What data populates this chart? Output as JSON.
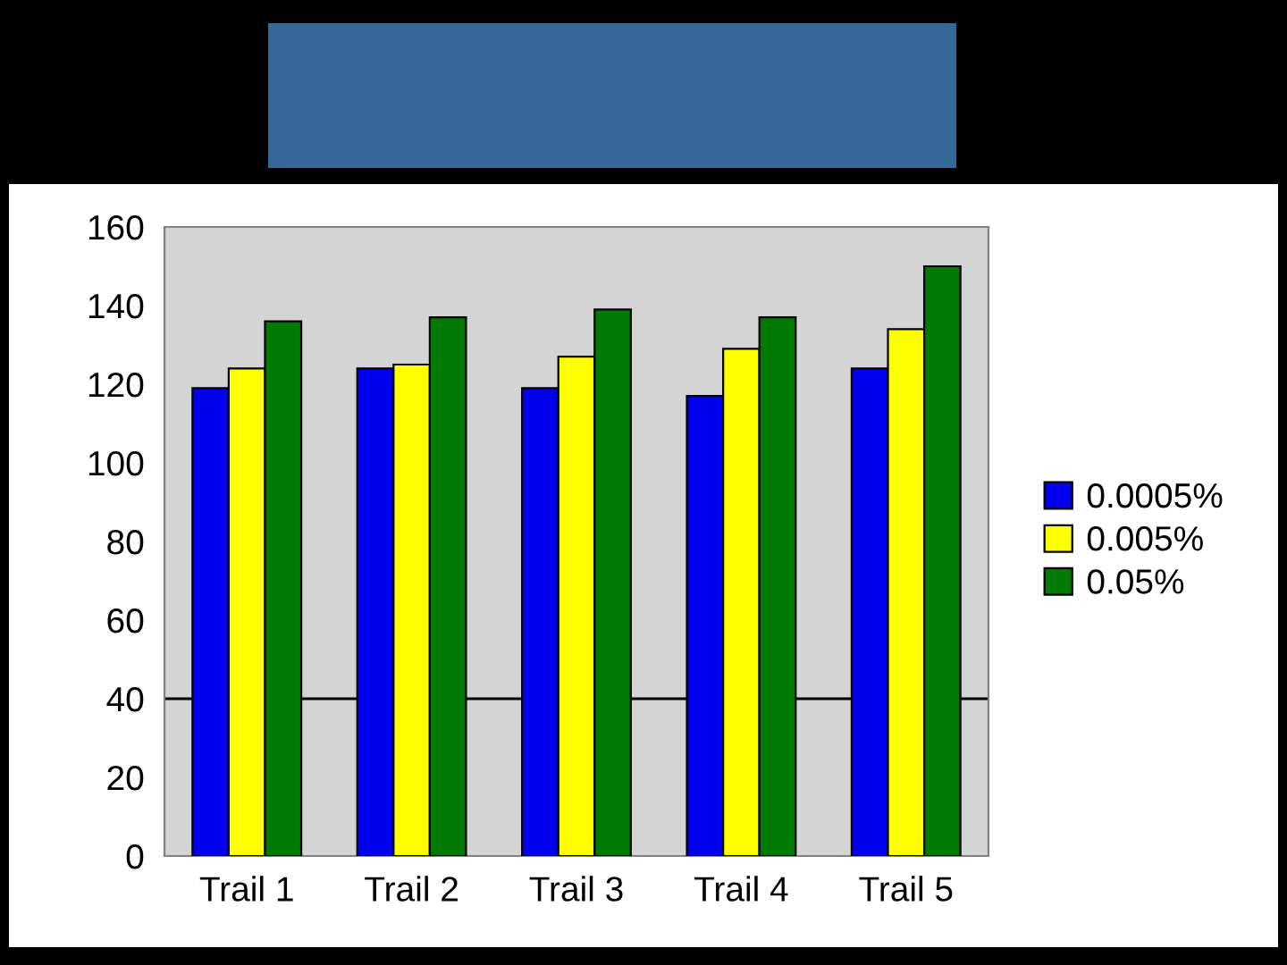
{
  "chart_data": {
    "type": "bar",
    "categories": [
      "Trail 1",
      "Trail 2",
      "Trail 3",
      "Trail 4",
      "Trail 5"
    ],
    "series": [
      {
        "name": "0.0005%",
        "color": "#0000ee",
        "values": [
          119,
          124,
          119,
          117,
          124
        ]
      },
      {
        "name": "0.005%",
        "color": "#ffff00",
        "values": [
          124,
          125,
          127,
          129,
          134
        ]
      },
      {
        "name": "0.05%",
        "color": "#007a00",
        "values": [
          136,
          137,
          139,
          137,
          150
        ]
      }
    ],
    "ylim": [
      0,
      160
    ],
    "yticks": [
      0,
      20,
      40,
      60,
      80,
      100,
      120,
      140,
      160
    ],
    "ref_lines": [
      {
        "axis": "y",
        "value": 40,
        "color": "#000000"
      }
    ],
    "legend": "right"
  }
}
